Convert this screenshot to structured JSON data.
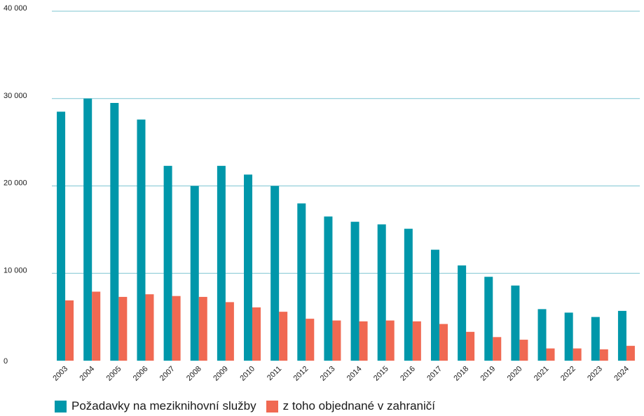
{
  "chart_data": {
    "type": "bar",
    "categories": [
      "2003",
      "2004",
      "2005",
      "2006",
      "2007",
      "2008",
      "2009",
      "2010",
      "2011",
      "2012",
      "2013",
      "2014",
      "2015",
      "2016",
      "2017",
      "2018",
      "2019",
      "2020",
      "2021",
      "2022",
      "2023",
      "2024"
    ],
    "series": [
      {
        "name": "Požadavky na meziknihovní služby",
        "color": "#0097aa",
        "values": [
          28500,
          30000,
          29500,
          27600,
          22300,
          20000,
          22300,
          21300,
          20000,
          18000,
          16500,
          15900,
          15600,
          15100,
          12700,
          10900,
          9600,
          8600,
          5900,
          5500,
          5000,
          5700
        ]
      },
      {
        "name": "z toho objednané v zahraničí",
        "color": "#f06952",
        "values": [
          6900,
          7900,
          7300,
          7600,
          7400,
          7300,
          6700,
          6100,
          5600,
          4800,
          4600,
          4500,
          4600,
          4500,
          4200,
          3300,
          2700,
          2400,
          1400,
          1400,
          1300,
          1700
        ]
      }
    ],
    "ylim": [
      0,
      40000
    ],
    "yticks": [
      0,
      10000,
      20000,
      30000,
      40000
    ],
    "ytick_labels": [
      "0",
      "10 000",
      "20 000",
      "30 000",
      "40 000"
    ],
    "grid": true,
    "legend_position": "bottom-left",
    "title": "",
    "xlabel": "",
    "ylabel": ""
  }
}
